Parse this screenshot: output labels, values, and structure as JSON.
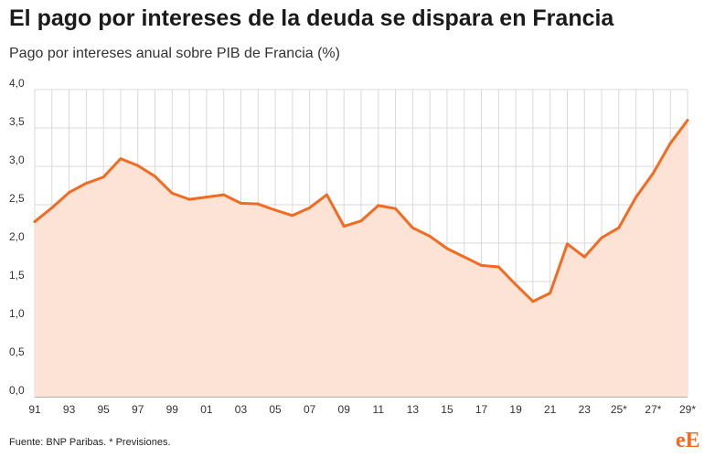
{
  "header": {
    "title": "El pago por intereses de la deuda se dispara en Francia",
    "subtitle": "Pago por intereses anual sobre PIB de Francia (%)"
  },
  "footer": {
    "source": "Fuente: BNP Paribas. * Previsiones.",
    "logo_e": "e",
    "logo_E": "E"
  },
  "colors": {
    "line": "#f26b21",
    "area": "#fde3d6",
    "grid": "#d9d9d9",
    "baseline": "#666666"
  },
  "chart_data": {
    "type": "area",
    "title": "",
    "xlabel": "",
    "ylabel": "",
    "ylim": [
      0,
      4
    ],
    "grid": true,
    "x": [
      1991,
      1992,
      1993,
      1994,
      1995,
      1996,
      1997,
      1998,
      1999,
      2000,
      2001,
      2002,
      2003,
      2004,
      2005,
      2006,
      2007,
      2008,
      2009,
      2010,
      2011,
      2012,
      2013,
      2014,
      2015,
      2016,
      2017,
      2018,
      2019,
      2020,
      2021,
      2022,
      2023,
      2024,
      2025,
      2026,
      2027,
      2028,
      2029
    ],
    "series": [
      {
        "values": [
          2.28,
          2.46,
          2.66,
          2.78,
          2.86,
          3.1,
          3.01,
          2.87,
          2.65,
          2.57,
          2.6,
          2.63,
          2.52,
          2.51,
          2.43,
          2.36,
          2.46,
          2.63,
          2.22,
          2.29,
          2.49,
          2.45,
          2.2,
          2.09,
          1.93,
          1.82,
          1.71,
          1.69,
          1.46,
          1.24,
          1.35,
          1.99,
          1.82,
          2.07,
          2.2,
          2.6,
          2.91,
          3.3,
          3.6
        ]
      }
    ],
    "y_ticks": [
      {
        "value": 0,
        "label": "0,0"
      },
      {
        "value": 0.5,
        "label": "0,5"
      },
      {
        "value": 1,
        "label": "1,0"
      },
      {
        "value": 1.5,
        "label": "1,5"
      },
      {
        "value": 2,
        "label": "2,0"
      },
      {
        "value": 2.5,
        "label": "2,5"
      },
      {
        "value": 3,
        "label": "3,0"
      },
      {
        "value": 3.5,
        "label": "3,5"
      },
      {
        "value": 4,
        "label": "4,0"
      }
    ],
    "x_ticks": [
      {
        "value": 1991,
        "label": "91"
      },
      {
        "value": 1993,
        "label": "93"
      },
      {
        "value": 1995,
        "label": "95"
      },
      {
        "value": 1997,
        "label": "97"
      },
      {
        "value": 1999,
        "label": "99"
      },
      {
        "value": 2001,
        "label": "01"
      },
      {
        "value": 2003,
        "label": "03"
      },
      {
        "value": 2005,
        "label": "05"
      },
      {
        "value": 2007,
        "label": "07"
      },
      {
        "value": 2009,
        "label": "09"
      },
      {
        "value": 2011,
        "label": "11"
      },
      {
        "value": 2013,
        "label": "13"
      },
      {
        "value": 2015,
        "label": "15"
      },
      {
        "value": 2017,
        "label": "17"
      },
      {
        "value": 2019,
        "label": "19"
      },
      {
        "value": 2021,
        "label": "21"
      },
      {
        "value": 2023,
        "label": "23"
      },
      {
        "value": 2025,
        "label": "25*"
      },
      {
        "value": 2027,
        "label": "27*"
      },
      {
        "value": 2029,
        "label": "29*"
      }
    ]
  }
}
